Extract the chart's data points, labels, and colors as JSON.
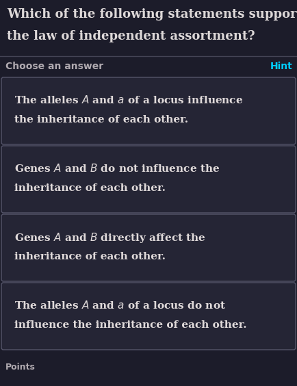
{
  "bg_color": "#1c1c2a",
  "title_line1": "Which of the following statements supports",
  "title_line2": "the law of independent assortment?",
  "title_color": "#ddd8d8",
  "choose_label": "Choose an answer",
  "hint_label": "Hint",
  "hint_color": "#00cfff",
  "choose_color": "#b0aab0",
  "card_bg": "#252535",
  "card_border": "#55556a",
  "card_text_color": "#e0dada",
  "options_line1": [
    "The alleles $\\mathit{A}$ and $\\mathit{a}$ of a locus influence",
    "Genes $\\mathit{A}$ and $\\mathit{B}$ do not influence the",
    "Genes $\\mathit{A}$ and $\\mathit{B}$ directly affect the",
    "The alleles $\\mathit{A}$ and $\\mathit{a}$ of a locus do not"
  ],
  "options_line2": [
    "the inheritance of each other.",
    "inheritance of each other.",
    "inheritance of each other.",
    "influence the inheritance of each other."
  ],
  "bottom_label": "Points",
  "figwidth": 4.34,
  "figheight": 5.64,
  "dpi": 100
}
